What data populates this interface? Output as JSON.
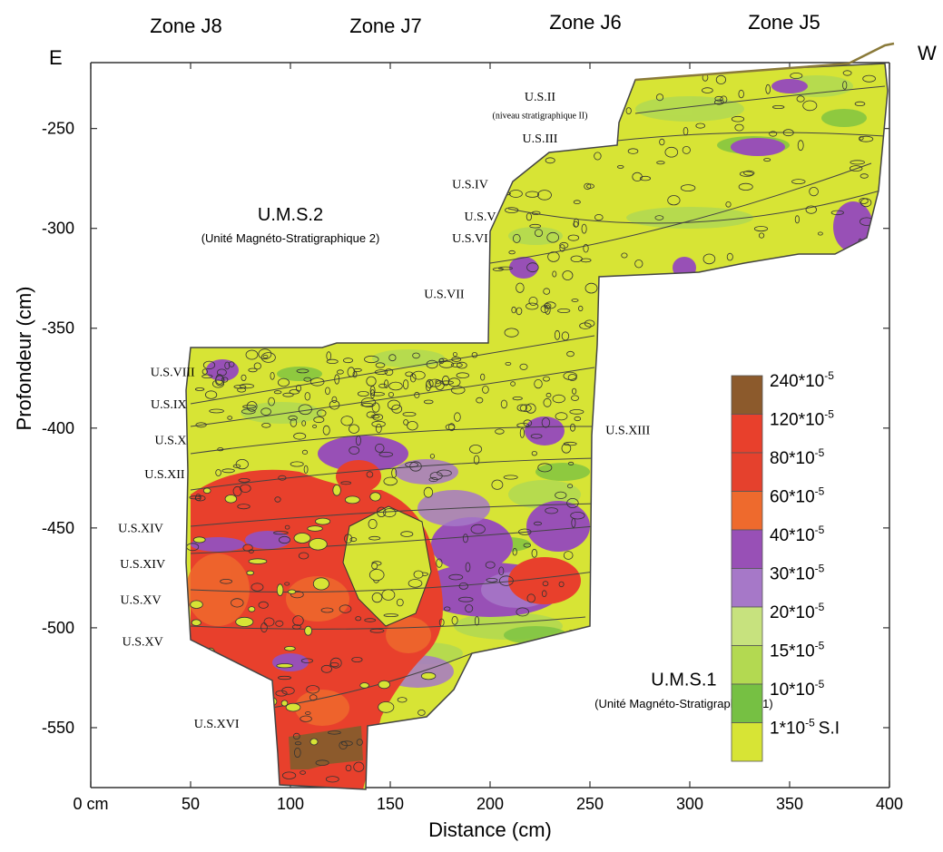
{
  "chart_data": {
    "type": "heatmap",
    "xlabel": "Distance  (cm)",
    "ylabel": "Profondeur  (cm)",
    "xlim": [
      0,
      400
    ],
    "ylim": [
      -580,
      -217
    ],
    "x_ticks": [
      {
        "value": 0,
        "label": "0 cm"
      },
      {
        "value": 50,
        "label": "50"
      },
      {
        "value": 100,
        "label": "100"
      },
      {
        "value": 150,
        "label": "150"
      },
      {
        "value": 200,
        "label": "200"
      },
      {
        "value": 250,
        "label": "250"
      },
      {
        "value": 300,
        "label": "300"
      },
      {
        "value": 350,
        "label": "350"
      },
      {
        "value": 400,
        "label": "400"
      }
    ],
    "y_ticks": [
      {
        "value": -250,
        "label": "-250"
      },
      {
        "value": -300,
        "label": "-300"
      },
      {
        "value": -350,
        "label": "-350"
      },
      {
        "value": -400,
        "label": "-400"
      },
      {
        "value": -450,
        "label": "-450"
      },
      {
        "value": -500,
        "label": "-500"
      },
      {
        "value": -550,
        "label": "-550"
      }
    ],
    "zones": [
      {
        "label": "Zone J8",
        "center": 50
      },
      {
        "label": "Zone J7",
        "center": 150
      },
      {
        "label": "Zone J6",
        "center": 250
      },
      {
        "label": "Zone J5",
        "center": 350
      }
    ],
    "orientation": {
      "left": "E",
      "right": "W"
    },
    "units_magneto": [
      {
        "title": "U.M.S.2",
        "subtitle": "(Unité Magnéto-Stratigraphique 2)",
        "x": 100,
        "y": -296,
        "sub_y": -307
      },
      {
        "title": "U.M.S.1",
        "subtitle": "(Unité Magnéto-Stratigraphique 1)",
        "x": 297,
        "y": -529,
        "sub_y": -540
      }
    ],
    "strata_labels": [
      {
        "label": "U.S.II",
        "x": 225,
        "y": -236
      },
      {
        "label": "(niveau stratigraphique II)",
        "x": 225,
        "y": -245,
        "small": true
      },
      {
        "label": "U.S.III",
        "x": 225,
        "y": -257
      },
      {
        "label": "U.S.IV",
        "x": 190,
        "y": -280
      },
      {
        "label": "U.S.V",
        "x": 195,
        "y": -296
      },
      {
        "label": "U.S.VI",
        "x": 190,
        "y": -307
      },
      {
        "label": "U.S.VII",
        "x": 177,
        "y": -335
      },
      {
        "label": "U.S.VIII",
        "x": 41,
        "y": -374
      },
      {
        "label": "U.S.IX",
        "x": 39,
        "y": -390
      },
      {
        "label": "U.S.X",
        "x": 40,
        "y": -408
      },
      {
        "label": "U.S.XII",
        "x": 37,
        "y": -425
      },
      {
        "label": "U.S.XIII",
        "x": 269,
        "y": -403
      },
      {
        "label": "U.S.XIV",
        "x": 25,
        "y": -452
      },
      {
        "label": "U.S.XIV",
        "x": 26,
        "y": -470
      },
      {
        "label": "U.S.XV",
        "x": 25,
        "y": -488
      },
      {
        "label": "U.S.XV",
        "x": 26,
        "y": -509
      },
      {
        "label": "U.S.XVI",
        "x": 63,
        "y": -550
      }
    ],
    "legend": {
      "position": "right",
      "unit": "S.I",
      "entries": [
        {
          "label": "240*10",
          "exp": "-5",
          "color": "#8c5a2c"
        },
        {
          "label": "120*10",
          "exp": "-5",
          "color": "#e8402c"
        },
        {
          "label": "80*10",
          "exp": "-5",
          "color": "#e5412d"
        },
        {
          "label": "60*10",
          "exp": "-5",
          "color": "#ee6a2d"
        },
        {
          "label": "40*10",
          "exp": "-5",
          "color": "#9850b6"
        },
        {
          "label": "30*10",
          "exp": "-5",
          "color": "#a678c8"
        },
        {
          "label": "20*10",
          "exp": "-5",
          "color": "#c7e27e"
        },
        {
          "label": "15*10",
          "exp": "-5",
          "color": "#b3d951"
        },
        {
          "label": "10*10",
          "exp": "-5",
          "color": "#76c043"
        },
        {
          "label": "1*10",
          "exp": "-5",
          "color": "#d7e435"
        }
      ]
    },
    "grid": false
  }
}
